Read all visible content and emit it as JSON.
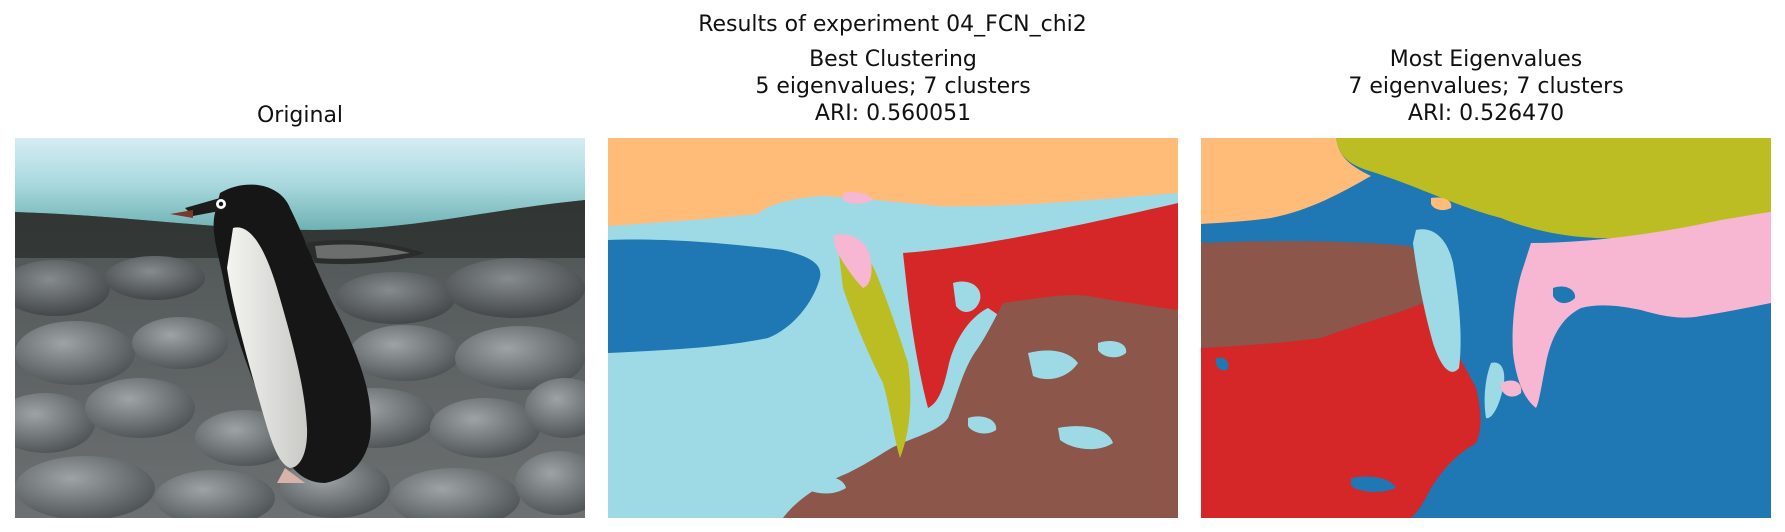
{
  "figure": {
    "suptitle": "Results of experiment 04_FCN_chi2"
  },
  "panels": [
    {
      "title_lines": [
        "Original"
      ],
      "kind": "photo",
      "subject": "penguin on rocks"
    },
    {
      "title_lines": [
        "Best Clustering",
        "5 eigenvalues; 7 clusters",
        "ARI: 0.560051"
      ],
      "kind": "segmentation",
      "eigenvalues": 5,
      "clusters": 7,
      "ari": 0.560051
    },
    {
      "title_lines": [
        "Most Eigenvalues",
        "7 eigenvalues; 7 clusters",
        "ARI: 0.526470"
      ],
      "kind": "segmentation",
      "eigenvalues": 7,
      "clusters": 7,
      "ari": 0.52647
    }
  ],
  "palette": {
    "orange": "#ffbb78",
    "light_blue": "#9edae5",
    "blue": "#1f77b4",
    "red": "#d62728",
    "brown": "#8c564b",
    "olive": "#bcbd22",
    "pink": "#f7b6d2"
  }
}
